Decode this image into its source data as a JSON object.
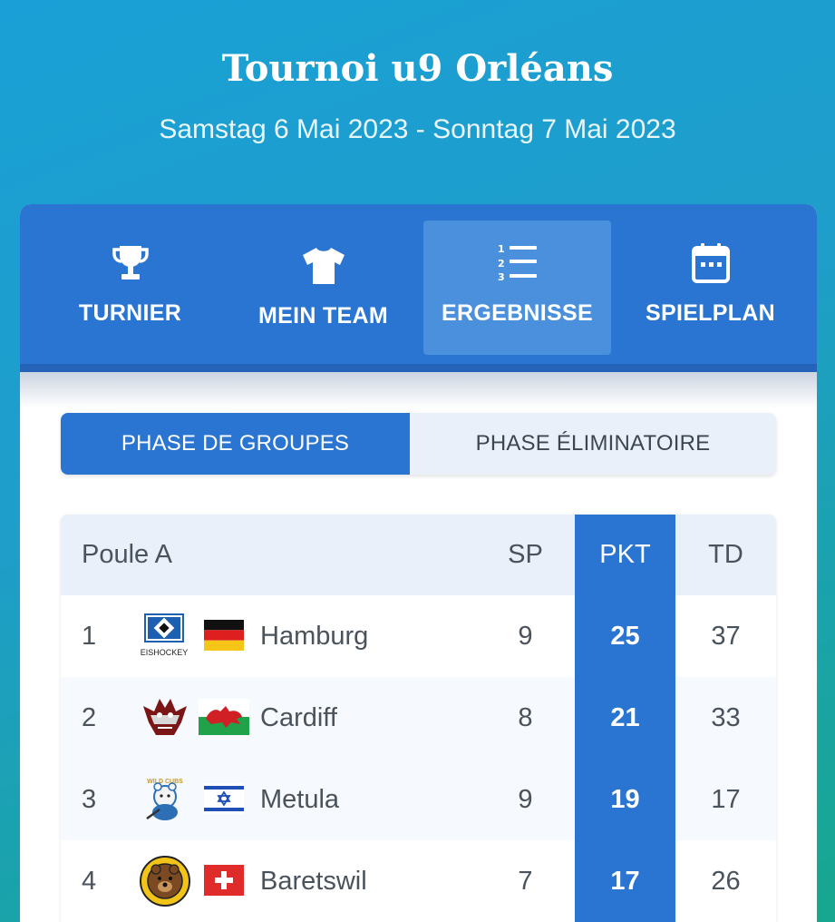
{
  "header": {
    "title": "Tournoi u9 Orléans",
    "dates": "Samstag 6 Mai 2023 - Sonntag 7 Mai 2023"
  },
  "nav": {
    "tabs": [
      {
        "label": "TURNIER",
        "icon": "trophy-icon"
      },
      {
        "label": "MEIN TEAM",
        "icon": "jersey-icon"
      },
      {
        "label": "ERGEBNISSE",
        "icon": "ranked-list-icon",
        "active": true
      },
      {
        "label": "SPIELPLAN",
        "icon": "calendar-icon"
      }
    ]
  },
  "phase_toggle": {
    "group": "PHASE DE GROUPES",
    "knockout": "PHASE ÉLIMINATOIRE",
    "selected": "group"
  },
  "table": {
    "group_name": "Poule A",
    "headers": {
      "sp": "SP",
      "pkt": "PKT",
      "td": "TD"
    },
    "rows": [
      {
        "rank": "1",
        "team": "Hamburg",
        "sp": "9",
        "pkt": "25",
        "td": "37",
        "logo": "hamburg-logo",
        "logo_text": "EISHOCKEY",
        "flag": "germany-flag"
      },
      {
        "rank": "2",
        "team": "Cardiff",
        "sp": "8",
        "pkt": "21",
        "td": "33",
        "logo": "cardiff-devils-logo",
        "flag": "wales-flag"
      },
      {
        "rank": "3",
        "team": "Metula",
        "sp": "9",
        "pkt": "19",
        "td": "17",
        "logo": "metula-wild-cubs-logo",
        "logo_text": "WILD CUBS",
        "flag": "israel-flag"
      },
      {
        "rank": "4",
        "team": "Baretswil",
        "sp": "7",
        "pkt": "17",
        "td": "26",
        "logo": "baretswil-grizzlys-logo",
        "flag": "switzerland-flag"
      }
    ]
  },
  "colors": {
    "primary": "#2a74d2",
    "active_tab": "#4b90dc",
    "header_row": "#e9f0f9"
  }
}
